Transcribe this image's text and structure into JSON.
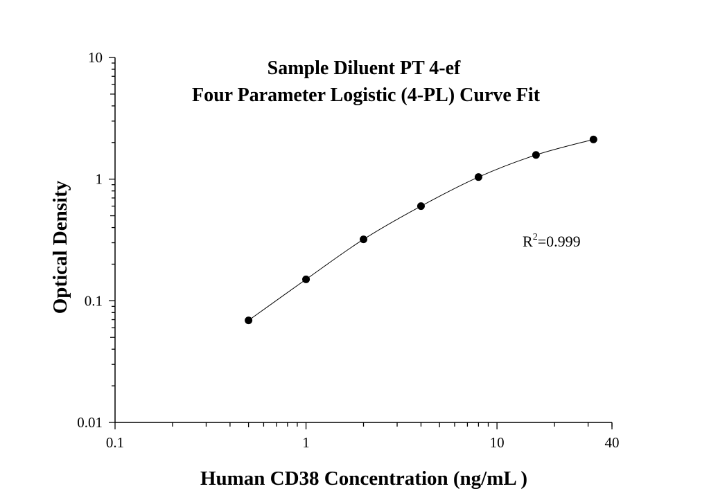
{
  "chart_data": {
    "type": "scatter",
    "title": "Sample Diluent PT 4-ef",
    "subtitle": "Four Parameter Logistic (4-PL) Curve Fit",
    "xlabel": "Human CD38 Concentration (ng/mL )",
    "ylabel": "Optical Density",
    "x_scale": "log",
    "y_scale": "log",
    "xlim": [
      0.1,
      40
    ],
    "ylim": [
      0.01,
      10
    ],
    "x_ticks": [
      0.1,
      1,
      10,
      40
    ],
    "x_tick_labels": [
      "0.1",
      "1",
      "10",
      "40"
    ],
    "y_ticks": [
      0.01,
      0.1,
      1,
      10
    ],
    "y_tick_labels": [
      "0.01",
      "0.1",
      "1",
      "10"
    ],
    "grid": false,
    "series": [
      {
        "x": [
          0.5,
          1,
          2,
          4,
          8,
          16,
          32
        ],
        "y": [
          0.069,
          0.15,
          0.32,
          0.6,
          1.04,
          1.58,
          2.12
        ]
      }
    ],
    "curve_fit": "4-PL",
    "annotation": {
      "r_prefix": "R",
      "r_sup": "2",
      "r_value": "=0.999"
    }
  }
}
